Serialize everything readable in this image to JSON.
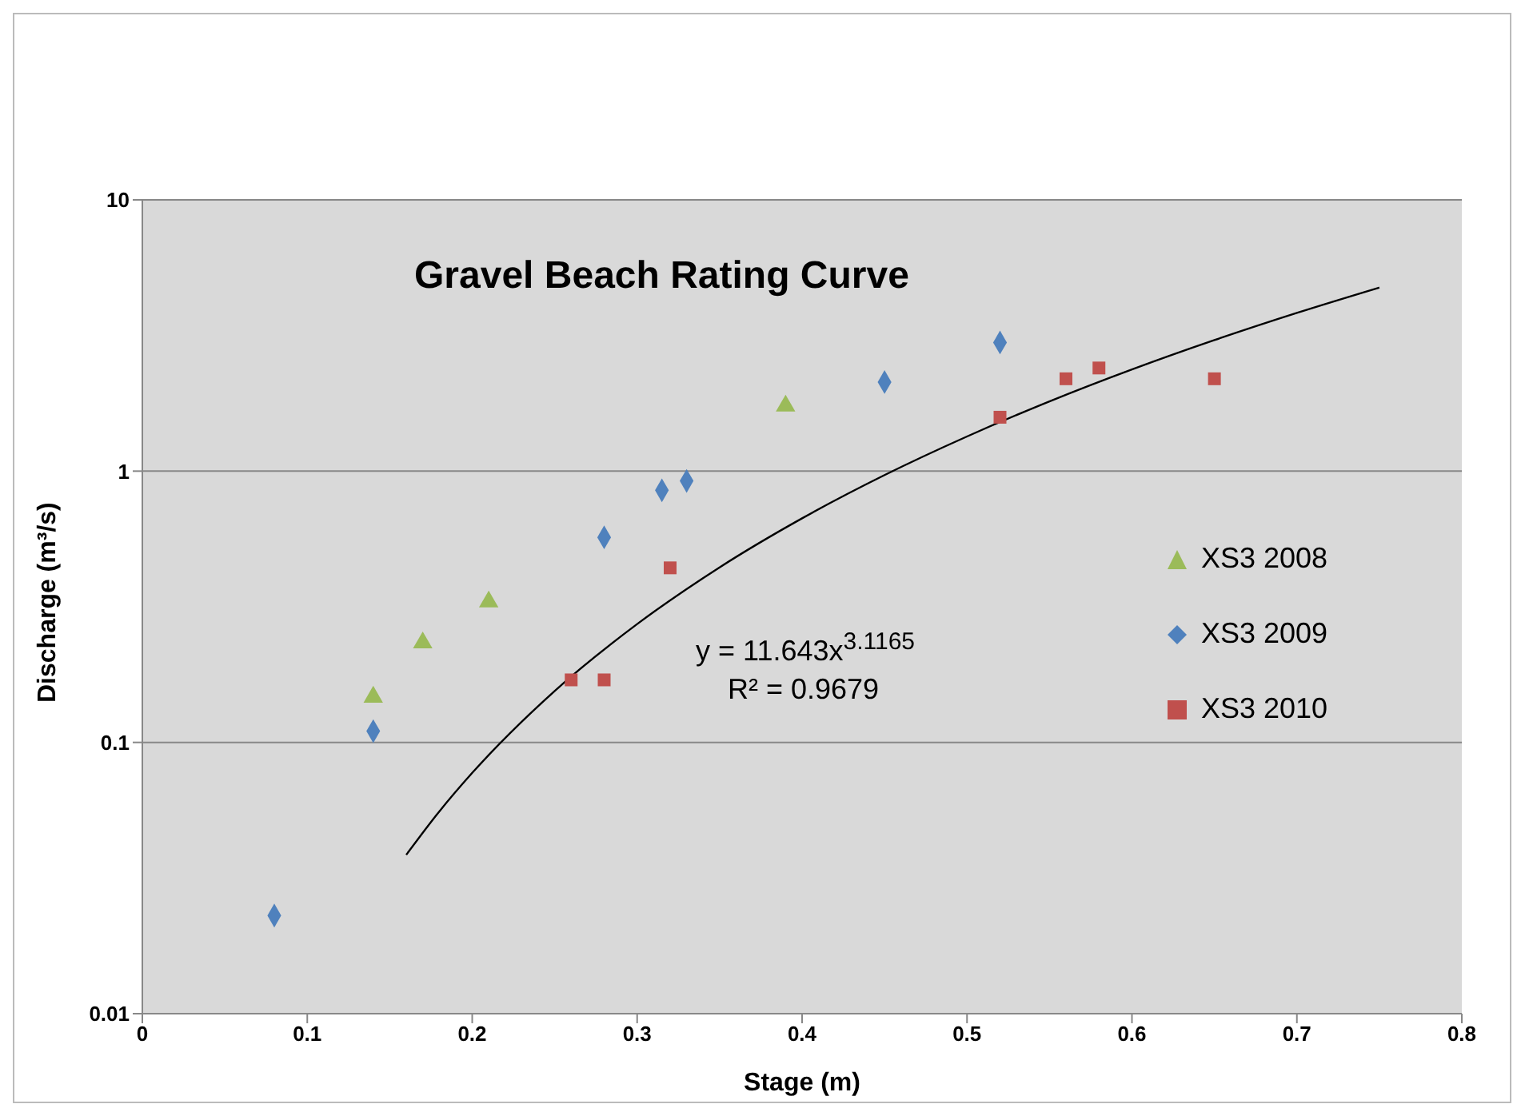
{
  "chart_data": {
    "type": "scatter",
    "title": "Gravel Beach Rating Curve",
    "xlabel": "Stage (m)",
    "ylabel": "Discharge (m³/s)",
    "annotations": [
      "y = 11.643x$^{3.1165}$",
      "R² = 0.9679"
    ],
    "xlim": [
      0,
      0.8
    ],
    "xticks": [
      0,
      0.1,
      0.2,
      0.3,
      0.4,
      0.5,
      0.6,
      0.7,
      0.8
    ],
    "ylim": [
      0.01,
      10
    ],
    "yticks": [
      0.01,
      0.1,
      1,
      10
    ],
    "log": "y",
    "grid": "y",
    "legend": "right",
    "series": [
      {
        "name": "XS3 2008",
        "color": "#9bbb59",
        "marker": "triangle",
        "x": [
          0.14,
          0.17,
          0.21,
          0.39
        ],
        "values": [
          0.147,
          0.233,
          0.33,
          1.74
        ]
      },
      {
        "name": "XS3 2009",
        "color": "#4f81bd",
        "marker": "diamond",
        "x": [
          0.08,
          0.14,
          0.28,
          0.315,
          0.33,
          0.45,
          0.52
        ],
        "values": [
          0.023,
          0.11,
          0.57,
          0.85,
          0.92,
          2.13,
          2.98
        ]
      },
      {
        "name": "XS3 2010",
        "color": "#c0504d",
        "marker": "square",
        "x": [
          0.26,
          0.28,
          0.32,
          0.52,
          0.56,
          0.58,
          0.65
        ],
        "values": [
          0.17,
          0.17,
          0.44,
          1.58,
          2.19,
          2.4,
          2.19
        ]
      },
      {
        "type": "line",
        "color": "#000000",
        "marker": "none",
        "x": [
          0.16,
          0.18,
          0.2,
          0.25,
          0.3,
          0.35,
          0.4,
          0.45,
          0.5,
          0.55,
          0.6,
          0.65,
          0.7,
          0.75
        ],
        "values": [
          0.0385,
          0.0556,
          0.0772,
          0.1548,
          0.273,
          0.442,
          0.67,
          0.967,
          1.342,
          1.807,
          2.37,
          3.041,
          3.831,
          4.75
        ]
      }
    ]
  }
}
